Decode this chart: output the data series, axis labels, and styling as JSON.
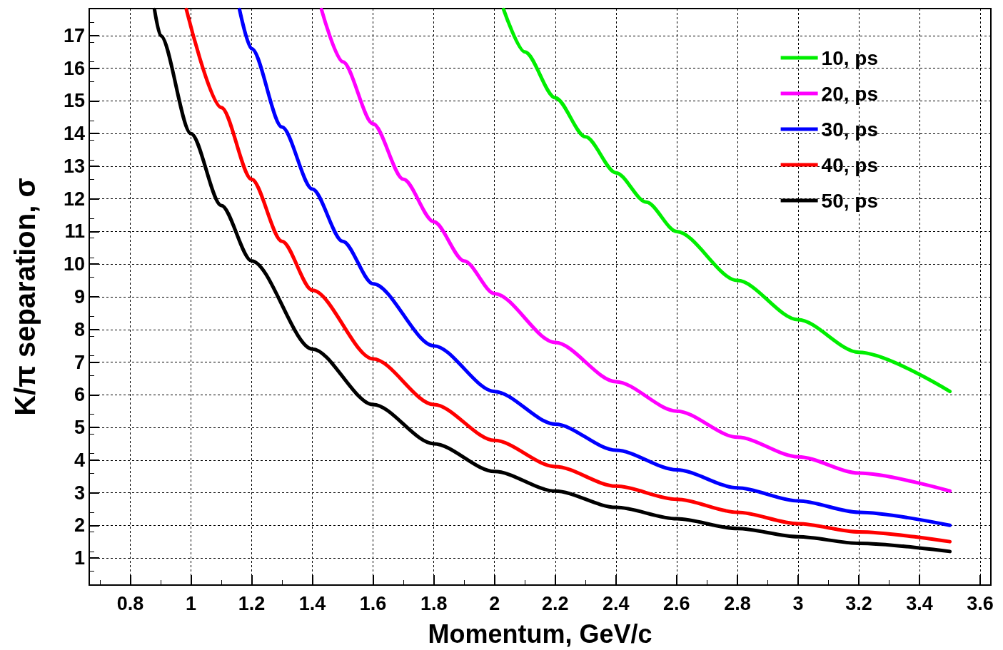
{
  "chart_data": {
    "type": "line",
    "xlabel": "Momentum, GeV/c",
    "ylabel": "K/π separation, σ",
    "xlim": [
      0.665,
      3.635
    ],
    "ylim": [
      0.17,
      17.83
    ],
    "xticks": [
      0.8,
      1,
      1.2,
      1.4,
      1.6,
      1.8,
      2,
      2.2,
      2.4,
      2.6,
      2.8,
      3,
      3.2,
      3.4,
      3.6
    ],
    "yticks": [
      1,
      2,
      3,
      4,
      5,
      6,
      7,
      8,
      9,
      10,
      11,
      12,
      13,
      14,
      15,
      16,
      17
    ],
    "grid": true,
    "legend": "top right",
    "marker": "none",
    "line_style": "solid",
    "series": [
      {
        "name": "10, ps",
        "color": "#00ee00",
        "x": [
          2.03,
          2.1,
          2.2,
          2.3,
          2.4,
          2.5,
          2.6,
          2.8,
          3,
          3.2,
          3.5
        ],
        "values": [
          17.8,
          16.5,
          15.1,
          13.9,
          12.8,
          11.9,
          11,
          9.5,
          8.3,
          7.3,
          6.1
        ]
      },
      {
        "name": "20, ps",
        "color": "#ff00ff",
        "x": [
          1.43,
          1.5,
          1.6,
          1.7,
          1.8,
          1.9,
          2,
          2.2,
          2.4,
          2.6,
          2.8,
          3,
          3.2,
          3.5
        ],
        "values": [
          17.8,
          16.2,
          14.3,
          12.6,
          11.3,
          10.1,
          9.1,
          7.6,
          6.4,
          5.5,
          4.7,
          4.1,
          3.6,
          3.05
        ]
      },
      {
        "name": "30, ps",
        "color": "#0000ff",
        "x": [
          1.16,
          1.2,
          1.3,
          1.4,
          1.5,
          1.6,
          1.8,
          2,
          2.2,
          2.4,
          2.6,
          2.8,
          3,
          3.2,
          3.5
        ],
        "values": [
          17.8,
          16.6,
          14.2,
          12.3,
          10.7,
          9.4,
          7.5,
          6.1,
          5.1,
          4.3,
          3.7,
          3.15,
          2.75,
          2.4,
          2.0
        ]
      },
      {
        "name": "40, ps",
        "color": "#ff0000",
        "x": [
          0.985,
          1.1,
          1.2,
          1.3,
          1.4,
          1.6,
          1.8,
          2,
          2.2,
          2.4,
          2.6,
          2.8,
          3,
          3.2,
          3.5
        ],
        "values": [
          17.8,
          14.8,
          12.6,
          10.7,
          9.2,
          7.1,
          5.7,
          4.6,
          3.8,
          3.2,
          2.8,
          2.4,
          2.05,
          1.8,
          1.5
        ]
      },
      {
        "name": "50, ps",
        "color": "#000000",
        "x": [
          0.88,
          0.9,
          1,
          1.1,
          1.2,
          1.4,
          1.6,
          1.8,
          2,
          2.2,
          2.4,
          2.6,
          2.8,
          3,
          3.2,
          3.5
        ],
        "values": [
          17.8,
          17.0,
          14.0,
          11.8,
          10.1,
          7.4,
          5.7,
          4.5,
          3.65,
          3.05,
          2.55,
          2.2,
          1.9,
          1.65,
          1.45,
          1.2
        ]
      }
    ]
  }
}
